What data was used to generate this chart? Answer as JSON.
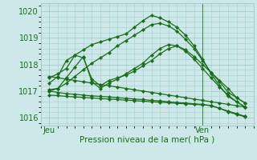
{
  "bg_color": "#cce8e8",
  "grid_color": "#aacaca",
  "line_color": "#1a6e1a",
  "xlabel": "Pression niveau de la mer( hPa )",
  "ylim": [
    1015.7,
    1020.3
  ],
  "yticks": [
    1016,
    1017,
    1018,
    1019,
    1020
  ],
  "xlim": [
    0,
    25
  ],
  "xtick_positions": [
    1,
    19
  ],
  "xtick_labels": [
    "Jeu",
    "Ven"
  ],
  "vline_x": 19,
  "n_points": 24,
  "series": [
    {
      "x": [
        1,
        2,
        3,
        4,
        5,
        6,
        7,
        8,
        9,
        10,
        11,
        12,
        13,
        14,
        15,
        16,
        17,
        18,
        19,
        20,
        21,
        22,
        23,
        24
      ],
      "y": [
        1017.3,
        1017.55,
        1018.15,
        1018.35,
        1018.55,
        1018.75,
        1018.85,
        1018.95,
        1019.05,
        1019.15,
        1019.4,
        1019.65,
        1019.85,
        1019.75,
        1019.6,
        1019.4,
        1019.1,
        1018.7,
        1018.2,
        1017.65,
        1017.2,
        1016.8,
        1016.6,
        1016.4
      ]
    },
    {
      "x": [
        1,
        2,
        3,
        4,
        5,
        6,
        7,
        8,
        9,
        10,
        11,
        12,
        13,
        14,
        15,
        16,
        17,
        18,
        19,
        20,
        21,
        22,
        23,
        24
      ],
      "y": [
        1017.0,
        1017.1,
        1017.3,
        1017.55,
        1017.8,
        1018.05,
        1018.25,
        1018.45,
        1018.7,
        1018.9,
        1019.1,
        1019.3,
        1019.5,
        1019.55,
        1019.45,
        1019.25,
        1018.95,
        1018.6,
        1018.15,
        1017.7,
        1017.35,
        1016.95,
        1016.75,
        1016.55
      ]
    },
    {
      "x": [
        1,
        2,
        3,
        4,
        5,
        6,
        7,
        8,
        9,
        10,
        11,
        12,
        13,
        14,
        15,
        16,
        17,
        18,
        19,
        20,
        21,
        22,
        23,
        24
      ],
      "y": [
        1017.05,
        1017.1,
        1017.5,
        1017.9,
        1018.3,
        1017.35,
        1017.1,
        1017.3,
        1017.45,
        1017.65,
        1017.85,
        1018.05,
        1018.35,
        1018.6,
        1018.75,
        1018.7,
        1018.5,
        1018.2,
        1017.85,
        1017.5,
        1017.15,
        1016.85,
        1016.6,
        1016.4
      ]
    },
    {
      "x": [
        1,
        2,
        3,
        4,
        5,
        6,
        7,
        8,
        9,
        10,
        11,
        12,
        13,
        14,
        15,
        16,
        17,
        18,
        19,
        20,
        21,
        22,
        23,
        24
      ],
      "y": [
        1017.0,
        1016.95,
        1016.9,
        1016.88,
        1016.85,
        1016.82,
        1016.8,
        1016.78,
        1016.75,
        1016.73,
        1016.7,
        1016.68,
        1016.65,
        1016.63,
        1016.6,
        1016.57,
        1016.55,
        1016.52,
        1016.5,
        1016.45,
        1016.35,
        1016.25,
        1016.15,
        1016.05
      ]
    },
    {
      "x": [
        1,
        2,
        3,
        4,
        5,
        6,
        7,
        8,
        9,
        10,
        11,
        12,
        13,
        14,
        15,
        16,
        17,
        18,
        19,
        20,
        21,
        22,
        23,
        24
      ],
      "y": [
        1016.85,
        1016.83,
        1016.8,
        1016.78,
        1016.76,
        1016.74,
        1016.72,
        1016.7,
        1016.68,
        1016.66,
        1016.64,
        1016.62,
        1016.6,
        1016.58,
        1016.56,
        1016.54,
        1016.52,
        1016.5,
        1016.48,
        1016.46,
        1016.35,
        1016.22,
        1016.12,
        1016.03
      ]
    },
    {
      "x": [
        1,
        2,
        3,
        4,
        5,
        6,
        7,
        8,
        9,
        10,
        11,
        12,
        13,
        14,
        15,
        16,
        17,
        18,
        19,
        20,
        21,
        22,
        23,
        24
      ],
      "y": [
        1017.55,
        1017.5,
        1017.45,
        1017.4,
        1017.35,
        1017.3,
        1017.25,
        1017.2,
        1017.15,
        1017.1,
        1017.05,
        1017.0,
        1016.95,
        1016.9,
        1016.85,
        1016.8,
        1016.75,
        1016.7,
        1016.65,
        1016.6,
        1016.55,
        1016.5,
        1016.45,
        1016.4
      ]
    },
    {
      "x": [
        1,
        2,
        3,
        4,
        5,
        6,
        7,
        8,
        9,
        10,
        11,
        12,
        13,
        14,
        15,
        16,
        17,
        18,
        19,
        20,
        21,
        22,
        23,
        24
      ],
      "y": [
        1017.5,
        1017.65,
        1017.85,
        1018.35,
        1018.25,
        1017.45,
        1017.2,
        1017.4,
        1017.5,
        1017.6,
        1017.75,
        1017.95,
        1018.15,
        1018.4,
        1018.6,
        1018.7,
        1018.55,
        1018.3,
        1018.0,
        1017.7,
        1017.4,
        1017.1,
        1016.75,
        1016.55
      ]
    }
  ]
}
